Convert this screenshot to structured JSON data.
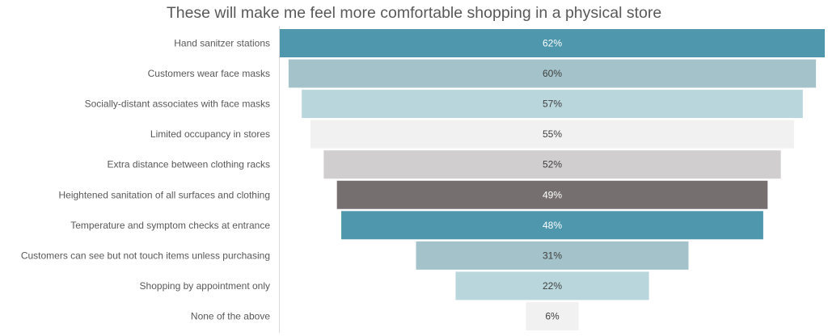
{
  "chart_data": {
    "type": "bar",
    "subtype": "funnel",
    "title": "These will make me feel more comfortable shopping in a physical store",
    "xlabel": "",
    "ylabel": "",
    "categories": [
      "Hand sanitzer stations",
      "Customers wear face masks",
      "Socially-distant associates with face masks",
      "Limited occupancy in stores",
      "Extra distance between clothing racks",
      "Heightened sanitation of all surfaces and clothing",
      "Temperature and symptom checks at entrance",
      "Customers can see but not touch items unless purchasing",
      "Shopping by appointment only",
      "None of the above"
    ],
    "values": [
      62,
      60,
      57,
      55,
      52,
      49,
      48,
      31,
      22,
      6
    ],
    "labels": [
      "62%",
      "60%",
      "57%",
      "55%",
      "52%",
      "49%",
      "48%",
      "31%",
      "22%",
      "6%"
    ],
    "colors": [
      "#4e97ad",
      "#a3c2c9",
      "#b9d6dc",
      "#f1f1f1",
      "#d0cecf",
      "#766f70",
      "#4e97ad",
      "#a3c2c9",
      "#b9d6dc",
      "#f1f1f1"
    ],
    "label_colors": [
      "#ffffff",
      "#404040",
      "#404040",
      "#404040",
      "#404040",
      "#ffffff",
      "#ffffff",
      "#404040",
      "#404040",
      "#404040"
    ],
    "xlim": [
      0,
      62
    ],
    "grid": false,
    "legend": "none"
  }
}
